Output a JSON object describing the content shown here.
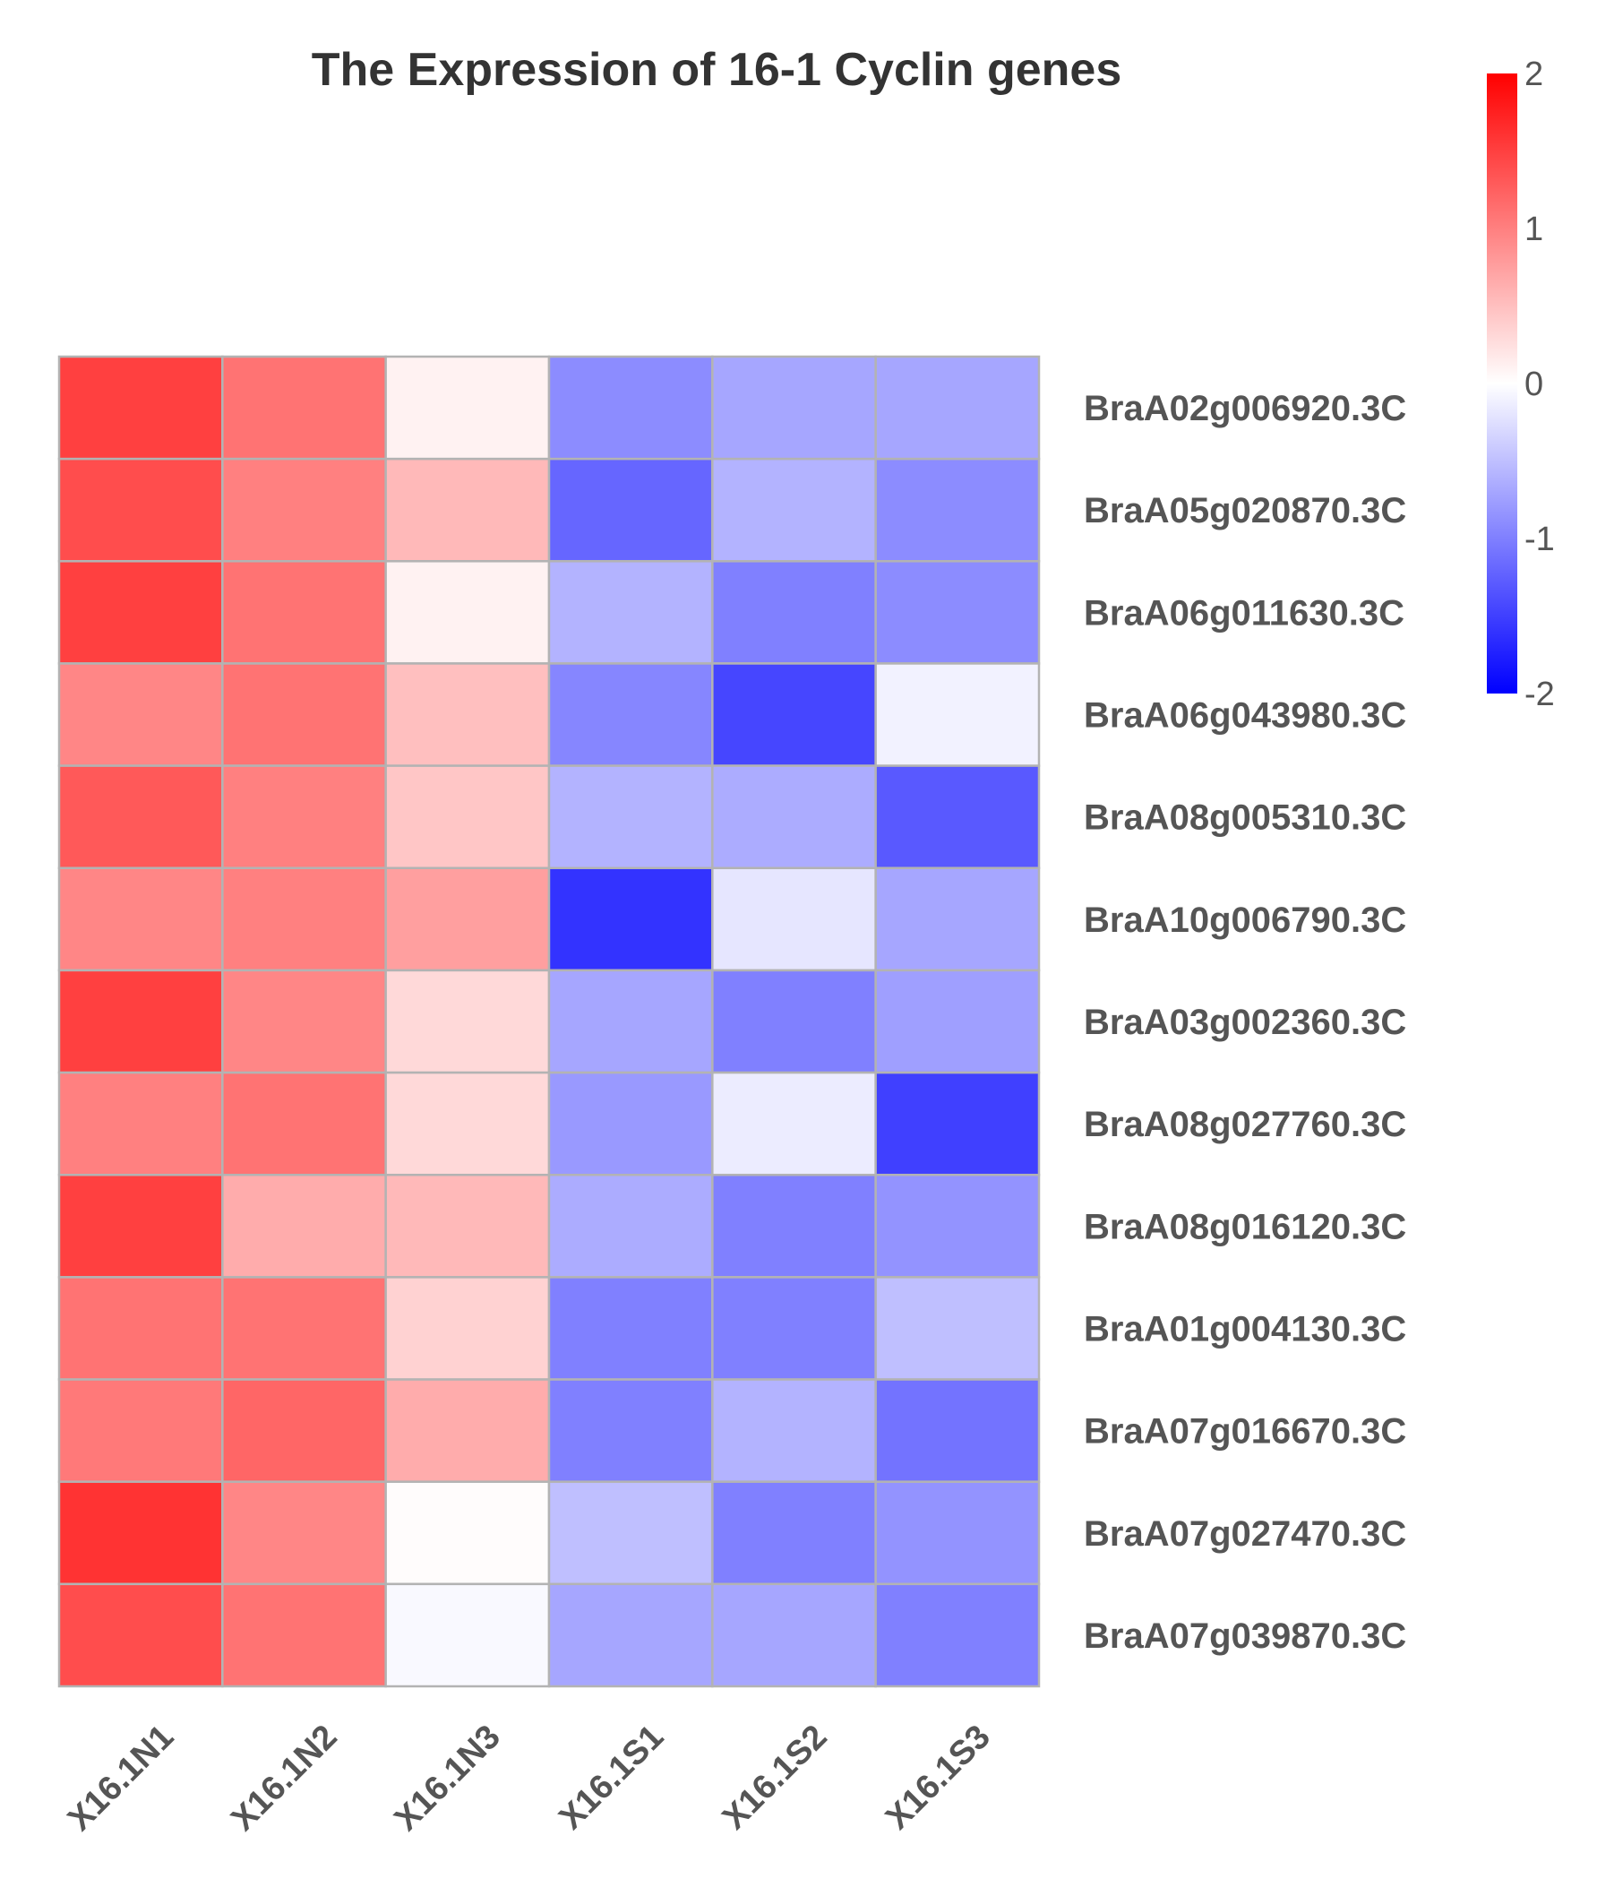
{
  "chart_data": {
    "type": "heatmap",
    "title": "The Expression of 16-1 Cyclin genes",
    "columns": [
      "X16.1N1",
      "X16.1N2",
      "X16.1N3",
      "X16.1S1",
      "X16.1S2",
      "X16.1S3"
    ],
    "rows": [
      "BraA02g006920.3C",
      "BraA05g020870.3C",
      "BraA06g011630.3C",
      "BraA06g043980.3C",
      "BraA08g005310.3C",
      "BraA10g006790.3C",
      "BraA03g002360.3C",
      "BraA08g027760.3C",
      "BraA08g016120.3C",
      "BraA01g004130.3C",
      "BraA07g016670.3C",
      "BraA07g027470.3C",
      "BraA07g039870.3C"
    ],
    "values": [
      [
        1.5,
        1.1,
        0.1,
        -0.9,
        -0.7,
        -0.7
      ],
      [
        1.4,
        1.0,
        0.55,
        -1.2,
        -0.6,
        -0.9
      ],
      [
        1.5,
        1.1,
        0.1,
        -0.6,
        -1.0,
        -0.9
      ],
      [
        0.95,
        1.1,
        0.5,
        -0.95,
        -1.45,
        -0.1
      ],
      [
        1.3,
        1.0,
        0.45,
        -0.6,
        -0.65,
        -1.3
      ],
      [
        0.95,
        1.0,
        0.75,
        -1.6,
        -0.2,
        -0.7
      ],
      [
        1.5,
        0.95,
        0.3,
        -0.7,
        -1.0,
        -0.75
      ],
      [
        1.0,
        1.1,
        0.3,
        -0.8,
        -0.15,
        -1.5
      ],
      [
        1.5,
        0.65,
        0.55,
        -0.65,
        -1.0,
        -0.85
      ],
      [
        1.1,
        1.1,
        0.35,
        -1.0,
        -1.0,
        -0.5
      ],
      [
        1.05,
        1.2,
        0.65,
        -1.0,
        -0.6,
        -1.1
      ],
      [
        1.6,
        0.95,
        0.02,
        -0.5,
        -1.0,
        -0.85
      ],
      [
        1.4,
        1.1,
        -0.05,
        -0.7,
        -0.7,
        -1.0
      ]
    ],
    "color_scale": {
      "min": -2,
      "max": 2,
      "low": "#0000ff",
      "mid": "#ffffff",
      "high": "#ff0000"
    },
    "legend": {
      "ticks": [
        2,
        1,
        0,
        -1,
        -2
      ],
      "labels": [
        "2",
        "1",
        "0",
        "-1",
        "-2"
      ],
      "position": "top-right"
    },
    "grid_color": "#b3b3b3"
  }
}
